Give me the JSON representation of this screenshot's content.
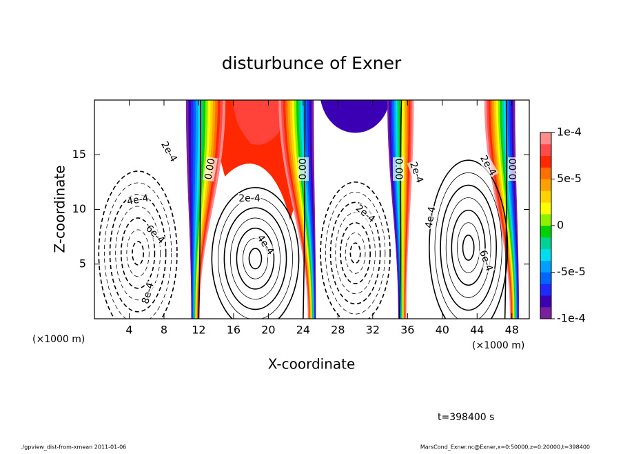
{
  "chart_data": {
    "type": "contour",
    "title": "disturbunce of Exner",
    "x_label": "X-coordinate",
    "y_label": "Z-coordinate",
    "x_unit": "(×1000 m)",
    "y_unit": "(×1000 m)",
    "xlim": [
      0,
      50
    ],
    "xticks": [
      4,
      8,
      12,
      16,
      20,
      24,
      28,
      32,
      36,
      40,
      44,
      48
    ],
    "ylim": [
      0,
      20
    ],
    "yticks": [
      5,
      10,
      15
    ],
    "colorbar": {
      "lim": [
        -0.0001,
        0.0001
      ],
      "ticks": [
        {
          "value": -0.0001,
          "label": "-1e-4"
        },
        {
          "value": -5e-05,
          "label": "-5e-5"
        },
        0,
        {
          "value": 5e-05,
          "label": "5e-5"
        },
        {
          "value": 0.0001,
          "label": "1e-4"
        }
      ],
      "colors": [
        "#7a1fa0",
        "#3c00b4",
        "#1e28ff",
        "#0064ff",
        "#00a0ff",
        "#00dcf0",
        "#00d296",
        "#00d200",
        "#8cf000",
        "#ffff00",
        "#ffd200",
        "#ffa000",
        "#ff6e00",
        "#ff2800",
        "#ff4a4a",
        "#ff8c8c"
      ]
    },
    "contour_labels": [
      "2e-4",
      "0.00",
      "4e-4",
      "6e-4",
      "8e-4",
      "2e-4",
      "4e-4",
      "0.00",
      "2e-4",
      "0.00",
      "2e-4",
      "4e-4",
      "2e-4",
      "6e-4",
      "0.00"
    ],
    "time_label": "t=398400 s",
    "footer_left": "./gpview_dist-from-xmean  2011-01-06",
    "footer_right": "MarsCond_Exner.nc@Exner,x=0:50000,z=0:20000,t=398400"
  }
}
